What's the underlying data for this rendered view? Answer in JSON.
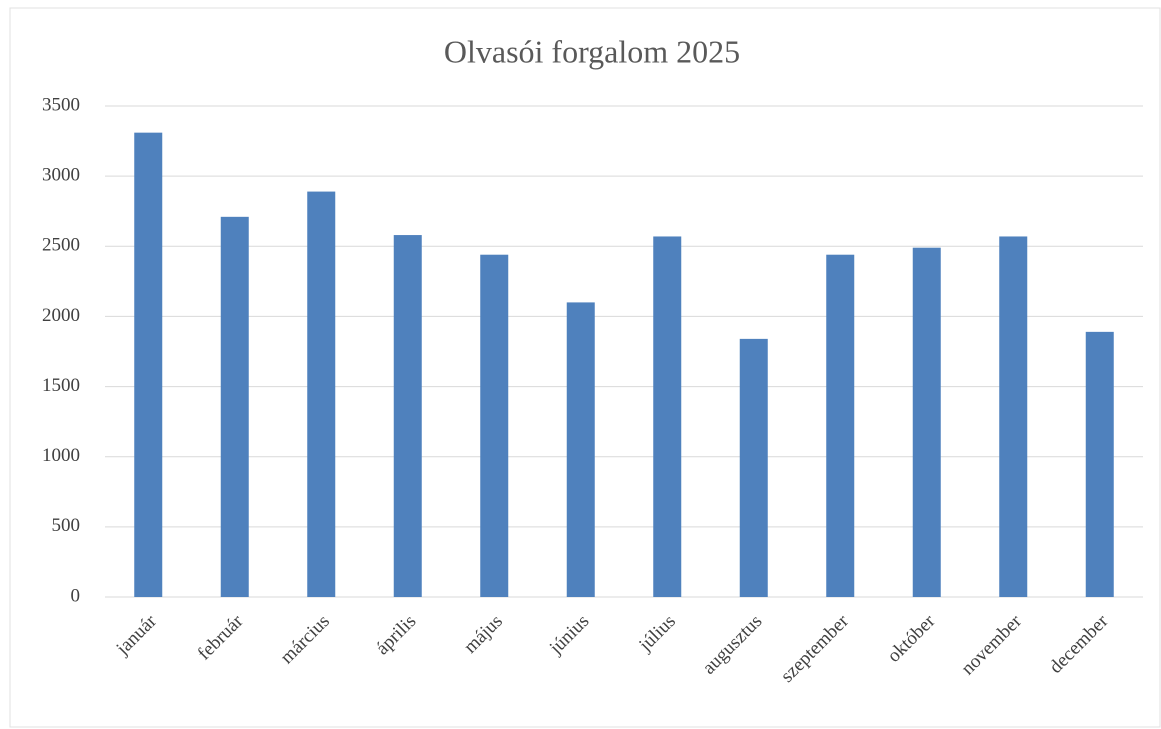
{
  "chart_data": {
    "type": "bar",
    "title": "Olvasói forgalom 2025",
    "categories": [
      "január",
      "február",
      "március",
      "április",
      "május",
      "június",
      "július",
      "augusztus",
      "szeptember",
      "október",
      "november",
      "december"
    ],
    "values": [
      3310,
      2710,
      2890,
      2580,
      2440,
      2100,
      2570,
      1840,
      2440,
      2490,
      2570,
      1890
    ],
    "color": "#4f81bd",
    "ylim": [
      0,
      3500
    ],
    "yticks": [
      0,
      500,
      1000,
      1500,
      2000,
      2500,
      3000,
      3500
    ],
    "grid": true
  }
}
